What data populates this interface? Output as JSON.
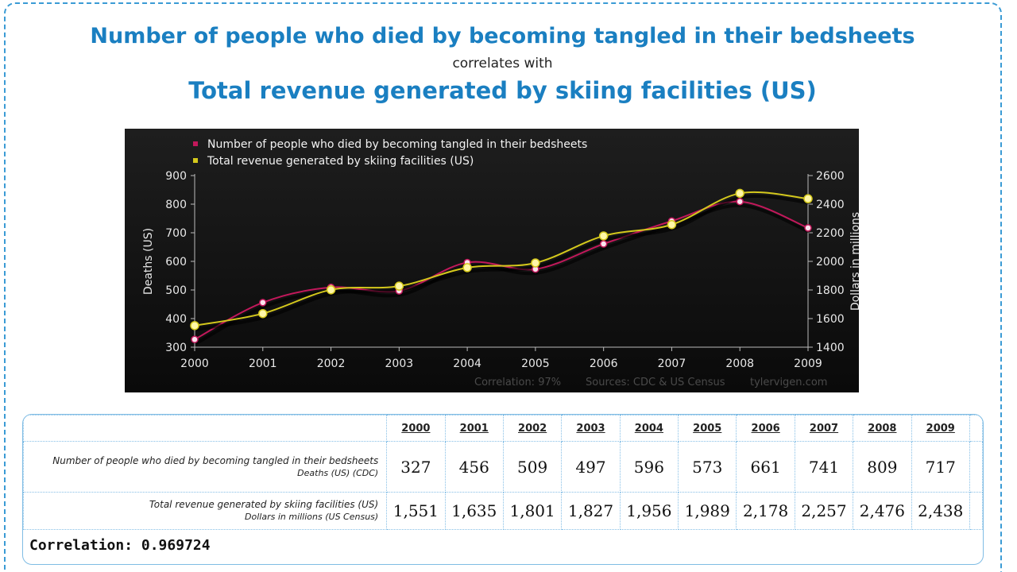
{
  "header": {
    "title_line1": "Number of people who died by becoming tangled in their bedsheets",
    "title_mid": "correlates with",
    "title_line2": "Total revenue generated by skiing facilities (US)"
  },
  "chart_data": {
    "type": "line",
    "x": [
      2000,
      2001,
      2002,
      2003,
      2004,
      2005,
      2006,
      2007,
      2008,
      2009
    ],
    "series": [
      {
        "name": "Number of people who died by becoming tangled in their bedsheets",
        "axis": "left",
        "color": "#c2185b",
        "values": [
          327,
          456,
          509,
          497,
          596,
          573,
          661,
          741,
          809,
          717
        ]
      },
      {
        "name": "Total revenue generated by skiing facilities (US)",
        "axis": "right",
        "color": "#d4c81c",
        "values": [
          1551,
          1635,
          1801,
          1827,
          1956,
          1989,
          2178,
          2257,
          2476,
          2438
        ]
      }
    ],
    "ylabel_left": "Deaths (US)",
    "ylabel_right": "Dollars in millions",
    "ylim_left": [
      300,
      900
    ],
    "yticks_left": [
      300,
      400,
      500,
      600,
      700,
      800,
      900
    ],
    "ylim_right": [
      1400,
      2600
    ],
    "yticks_right": [
      1400,
      1600,
      1800,
      2000,
      2200,
      2400,
      2600
    ],
    "legend_position": "top-left",
    "footer": {
      "correlation": "Correlation: 97%",
      "sources": "Sources: CDC & US Census",
      "site": "tylervigen.com"
    }
  },
  "table": {
    "years": [
      "2000",
      "2001",
      "2002",
      "2003",
      "2004",
      "2005",
      "2006",
      "2007",
      "2008",
      "2009"
    ],
    "row1": {
      "label": "Number of people who died by becoming tangled in their bedsheets",
      "sublabel": "Deaths (US) (CDC)",
      "values": [
        "327",
        "456",
        "509",
        "497",
        "596",
        "573",
        "661",
        "741",
        "809",
        "717"
      ]
    },
    "row2": {
      "label": "Total revenue generated by skiing facilities (US)",
      "sublabel": "Dollars in millions (US Census)",
      "values": [
        "1,551",
        "1,635",
        "1,801",
        "1,827",
        "1,956",
        "1,989",
        "2,178",
        "2,257",
        "2,476",
        "2,438"
      ]
    },
    "correlation": "Correlation: 0.969724"
  }
}
